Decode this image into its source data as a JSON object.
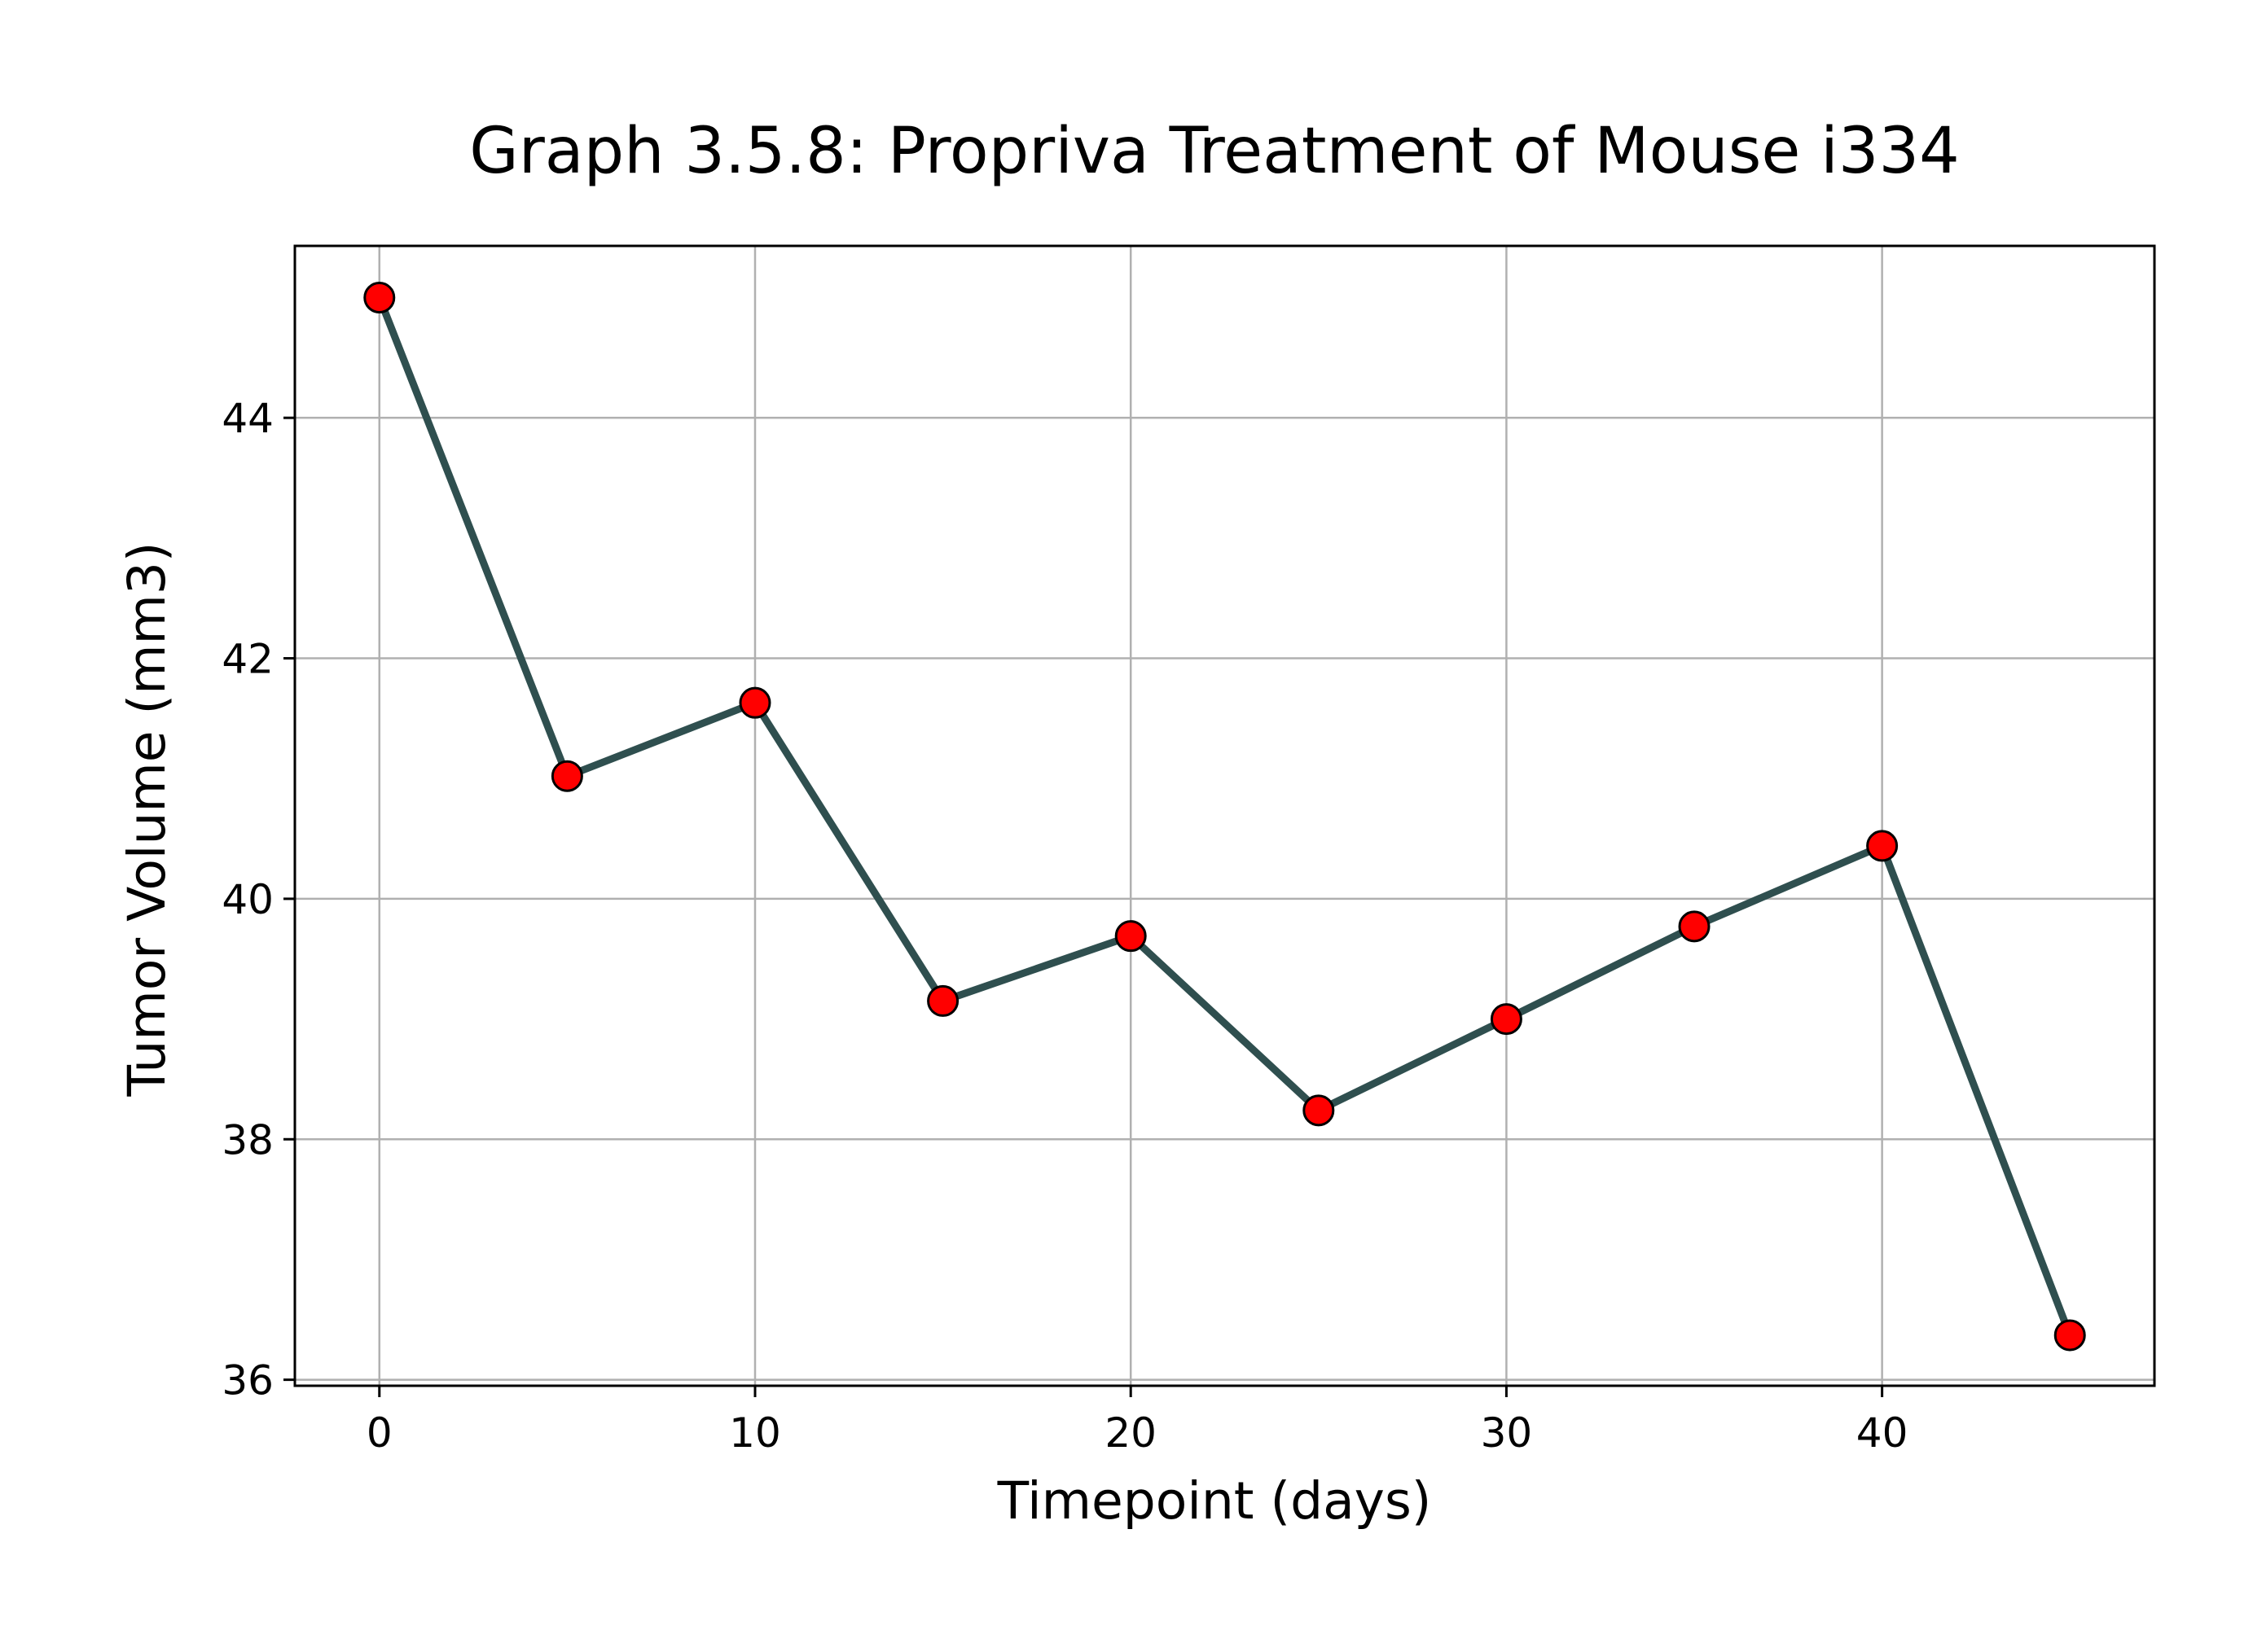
{
  "chart_data": {
    "type": "line",
    "title": "Graph 3.5.8: Propriva Treatment of Mouse i334",
    "xlabel": "Timepoint (days)",
    "ylabel": "Tumor Volume (mm3)",
    "x": [
      0,
      5,
      10,
      15,
      20,
      25,
      30,
      35,
      40,
      45
    ],
    "series": [
      {
        "values": [
          45.0,
          41.02,
          41.63,
          39.15,
          39.69,
          38.24,
          39.0,
          39.77,
          40.44,
          36.37
        ]
      }
    ],
    "xlim": [
      -2.25,
      47.25
    ],
    "ylim": [
      35.95,
      45.43
    ],
    "xticks": [
      0,
      10,
      20,
      30,
      40
    ],
    "yticks": [
      36,
      38,
      40,
      42,
      44
    ],
    "grid": true,
    "legend": "none",
    "colors": {
      "line": "#2f4f4f",
      "marker_fill": "#ff0000",
      "marker_edge": "#000000",
      "grid": "#b0b0b0",
      "axes": "#000000"
    }
  }
}
